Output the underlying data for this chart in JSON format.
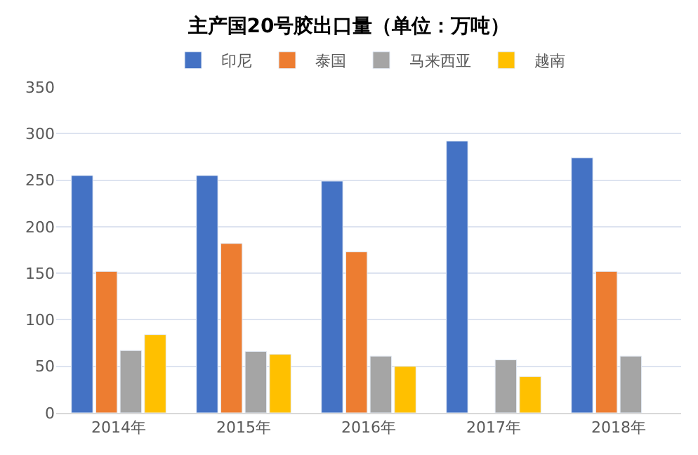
{
  "chart_data": {
    "type": "bar",
    "title": "主产国20号胶出口量（单位：万吨）",
    "categories": [
      "2014年",
      "2015年",
      "2016年",
      "2017年",
      "2018年"
    ],
    "series": [
      {
        "name": "印尼",
        "color": "#4472c4",
        "values": [
          255,
          255,
          249,
          292,
          274
        ]
      },
      {
        "name": "泰国",
        "color": "#ed7d31",
        "values": [
          152,
          182,
          173,
          null,
          152
        ]
      },
      {
        "name": "马来西亚",
        "color": "#a5a5a5",
        "values": [
          67,
          66,
          61,
          57,
          61
        ]
      },
      {
        "name": "越南",
        "color": "#ffc000",
        "values": [
          84,
          63,
          50,
          39,
          null
        ]
      }
    ],
    "ylim": [
      0,
      350
    ],
    "yticks": [
      0,
      50,
      100,
      150,
      200,
      250,
      300,
      350
    ],
    "grid": "y",
    "legend": "top"
  }
}
